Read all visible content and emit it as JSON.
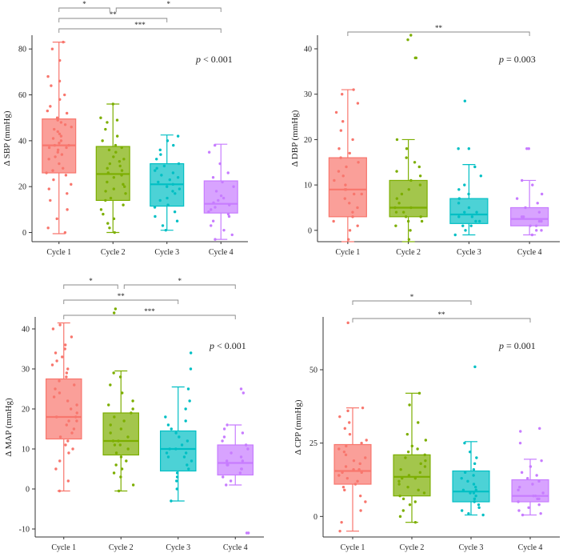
{
  "colors": [
    "#F8766D",
    "#7CAE00",
    "#00BFC4",
    "#C77CFF"
  ],
  "chart_data": [
    {
      "type": "box",
      "ylabel": "Δ SBP (mmHg)",
      "categories": [
        "Cycle 1",
        "Cycle 2",
        "Cycle 3",
        "Cycle 4"
      ],
      "ylim": [
        -4,
        86
      ],
      "yticks": [
        0,
        20,
        40,
        60,
        80
      ],
      "pvalue_label": "p",
      "pvalue_text": "< 0.001",
      "boxes": [
        {
          "category": "Cycle 1",
          "min": -0.5,
          "q1": 26,
          "median": 38,
          "q3": 49.5,
          "max": 83
        },
        {
          "category": "Cycle 2",
          "min": 0,
          "q1": 14,
          "median": 25.5,
          "q3": 37.5,
          "max": 56
        },
        {
          "category": "Cycle 3",
          "min": 1,
          "q1": 11.5,
          "median": 21,
          "q3": 30,
          "max": 42.5
        },
        {
          "category": "Cycle 4",
          "min": -3,
          "q1": 8.5,
          "median": 12.5,
          "q3": 22.5,
          "max": 38.5
        }
      ],
      "points": [
        [
          0,
          2,
          6,
          10,
          14,
          17,
          19,
          21,
          23,
          25,
          26,
          27,
          28,
          30,
          32,
          33,
          34,
          35,
          36,
          37,
          37,
          38,
          38,
          39,
          40,
          41,
          42,
          43,
          44,
          45,
          46,
          47,
          48,
          49,
          50,
          52,
          53,
          55,
          58,
          60,
          64,
          66,
          68,
          75,
          80,
          83
        ],
        [
          0,
          2,
          4,
          6,
          8,
          10,
          12,
          14,
          15,
          17,
          18,
          19,
          20,
          21,
          22,
          24,
          25,
          26,
          27,
          28,
          29,
          30,
          31,
          32,
          33,
          35,
          36,
          37,
          38,
          40,
          42,
          45,
          48,
          49,
          50,
          56
        ],
        [
          1,
          3,
          5,
          7,
          9,
          11,
          12,
          14,
          15,
          17,
          18,
          19,
          20,
          21,
          22,
          23,
          24,
          25,
          26,
          27,
          28,
          29,
          30,
          32,
          34,
          36,
          38,
          40,
          42
        ],
        [
          -3,
          -1,
          1,
          3,
          5,
          7,
          8,
          9,
          10,
          11,
          12,
          13,
          14,
          15,
          16,
          18,
          20,
          22,
          24,
          26,
          30,
          35,
          38
        ]
      ],
      "brackets": [
        {
          "from": "Cycle 1",
          "to": "Cycle 2",
          "label": "*"
        },
        {
          "from": "Cycle 2",
          "to": "Cycle 4",
          "label": "*"
        },
        {
          "from": "Cycle 1",
          "to": "Cycle 3",
          "label": "**"
        },
        {
          "from": "Cycle 1",
          "to": "Cycle 4",
          "label": "***"
        }
      ]
    },
    {
      "type": "box",
      "ylabel": "Δ DBP (mmHg)",
      "categories": [
        "Cycle 1",
        "Cycle 2",
        "Cycle 3",
        "Cycle 4"
      ],
      "ylim": [
        -2.5,
        43
      ],
      "yticks": [
        0,
        10,
        20,
        30,
        40
      ],
      "pvalue_label": "p",
      "pvalue_text": "= 0.003",
      "boxes": [
        {
          "category": "Cycle 1",
          "min": -2.5,
          "q1": 3,
          "median": 9,
          "q3": 16,
          "max": 31
        },
        {
          "category": "Cycle 2",
          "min": -2.5,
          "q1": 3,
          "median": 5,
          "q3": 11,
          "max": 20
        },
        {
          "category": "Cycle 3",
          "min": -1,
          "q1": 1.5,
          "median": 3.5,
          "q3": 7,
          "max": 14.5
        },
        {
          "category": "Cycle 4",
          "min": -1,
          "q1": 1,
          "median": 2.5,
          "q3": 5,
          "max": 11
        }
      ],
      "points": [
        [
          -2,
          0,
          1,
          2,
          3,
          4,
          5,
          6,
          7,
          8,
          8,
          9,
          9,
          10,
          11,
          12,
          13,
          14,
          15,
          16,
          17,
          18,
          20,
          22,
          24,
          26,
          28,
          30,
          31
        ],
        [
          -2,
          0,
          1,
          2,
          2,
          3,
          3,
          4,
          4,
          5,
          5,
          6,
          7,
          8,
          9,
          10,
          11,
          12,
          13,
          14,
          15,
          16,
          18,
          20,
          38,
          38,
          42,
          43
        ],
        [
          -1,
          0,
          1,
          1,
          2,
          2,
          3,
          3,
          4,
          4,
          5,
          6,
          7,
          8,
          9,
          10,
          12,
          14,
          18,
          18,
          28.5
        ],
        [
          -1,
          0,
          0,
          1,
          1,
          2,
          2,
          3,
          3,
          4,
          5,
          6,
          7,
          8,
          10,
          11,
          18,
          18
        ]
      ],
      "brackets": [
        {
          "from": "Cycle 1",
          "to": "Cycle 4",
          "label": "**"
        }
      ]
    },
    {
      "type": "box",
      "ylabel": "Δ MAP (mmHg)",
      "categories": [
        "Cycle 1",
        "Cycle 2",
        "Cycle 3",
        "Cycle 4"
      ],
      "ylim": [
        -12,
        43
      ],
      "yticks": [
        -10,
        0,
        10,
        20,
        30,
        40
      ],
      "pvalue_label": "p",
      "pvalue_text": "< 0.001",
      "boxes": [
        {
          "category": "Cycle 1",
          "min": -0.5,
          "q1": 12.5,
          "median": 18,
          "q3": 27.5,
          "max": 41.5
        },
        {
          "category": "Cycle 2",
          "min": -0.5,
          "q1": 8.5,
          "median": 12,
          "q3": 19,
          "max": 29.5
        },
        {
          "category": "Cycle 3",
          "min": -3,
          "q1": 4.5,
          "median": 10,
          "q3": 14.5,
          "max": 25.5
        },
        {
          "category": "Cycle 4",
          "min": 1,
          "q1": 3.5,
          "median": 6.5,
          "q3": 11,
          "max": 16
        }
      ],
      "points": [
        [
          -0.5,
          2,
          5,
          7,
          9,
          10,
          11,
          12,
          13,
          14,
          15,
          16,
          17,
          17,
          18,
          18,
          19,
          20,
          21,
          22,
          23,
          24,
          25,
          26,
          27,
          28,
          29,
          30,
          31,
          32,
          33,
          34,
          35,
          36,
          38,
          40,
          41
        ],
        [
          -0.5,
          1,
          3,
          4,
          5,
          6,
          7,
          8,
          9,
          10,
          11,
          11,
          12,
          12,
          13,
          14,
          15,
          16,
          17,
          18,
          19,
          20,
          21,
          22,
          24,
          26,
          28,
          29,
          44,
          45
        ],
        [
          -3,
          0,
          2,
          3,
          4,
          5,
          6,
          7,
          8,
          8,
          9,
          9,
          10,
          10,
          11,
          12,
          13,
          14,
          15,
          16,
          17,
          18,
          20,
          22,
          25,
          30,
          34
        ],
        [
          -11,
          -11,
          1,
          2,
          3,
          4,
          5,
          5,
          6,
          6,
          7,
          7,
          8,
          9,
          10,
          11,
          12,
          13,
          14,
          15,
          16,
          24,
          25
        ]
      ],
      "brackets": [
        {
          "from": "Cycle 1",
          "to": "Cycle 2",
          "label": "*"
        },
        {
          "from": "Cycle 2",
          "to": "Cycle 4",
          "label": "*"
        },
        {
          "from": "Cycle 1",
          "to": "Cycle 3",
          "label": "**"
        },
        {
          "from": "Cycle 1",
          "to": "Cycle 4",
          "label": "***"
        }
      ]
    },
    {
      "type": "box",
      "ylabel": "Δ CPP (mmHg)",
      "categories": [
        "Cycle 1",
        "Cycle 2",
        "Cycle 3",
        "Cycle 4"
      ],
      "ylim": [
        -7,
        68
      ],
      "yticks": [
        0,
        25,
        50
      ],
      "pvalue_label": "p",
      "pvalue_text": "= 0.001",
      "boxes": [
        {
          "category": "Cycle 1",
          "min": -5,
          "q1": 11,
          "median": 15.5,
          "q3": 24.5,
          "max": 37
        },
        {
          "category": "Cycle 2",
          "min": -2,
          "q1": 7,
          "median": 13.5,
          "q3": 21,
          "max": 42
        },
        {
          "category": "Cycle 3",
          "min": 0.5,
          "q1": 5,
          "median": 8.5,
          "q3": 15.5,
          "max": 25.5
        },
        {
          "category": "Cycle 4",
          "min": 0.5,
          "q1": 5,
          "median": 7,
          "q3": 12.5,
          "max": 19.5
        }
      ],
      "points": [
        [
          -5,
          -2,
          2,
          5,
          7,
          9,
          10,
          11,
          12,
          13,
          14,
          15,
          15,
          16,
          16,
          17,
          18,
          19,
          20,
          21,
          22,
          23,
          24,
          25,
          26,
          28,
          30,
          32,
          34,
          36,
          37,
          66
        ],
        [
          -2,
          0,
          2,
          4,
          5,
          6,
          7,
          8,
          9,
          10,
          11,
          12,
          13,
          13,
          14,
          15,
          16,
          17,
          18,
          19,
          20,
          21,
          22,
          23,
          24,
          26,
          28,
          32,
          38,
          42
        ],
        [
          0.5,
          1,
          2,
          3,
          4,
          5,
          6,
          7,
          8,
          8,
          9,
          9,
          10,
          11,
          12,
          13,
          14,
          15,
          16,
          18,
          20,
          22,
          25,
          51
        ],
        [
          0.5,
          1,
          2,
          3,
          4,
          5,
          6,
          6,
          7,
          7,
          8,
          9,
          10,
          11,
          12,
          13,
          14,
          15,
          17,
          19,
          25,
          29,
          30
        ]
      ],
      "brackets": [
        {
          "from": "Cycle 1",
          "to": "Cycle 3",
          "label": "*"
        },
        {
          "from": "Cycle 1",
          "to": "Cycle 4",
          "label": "**"
        }
      ]
    }
  ]
}
